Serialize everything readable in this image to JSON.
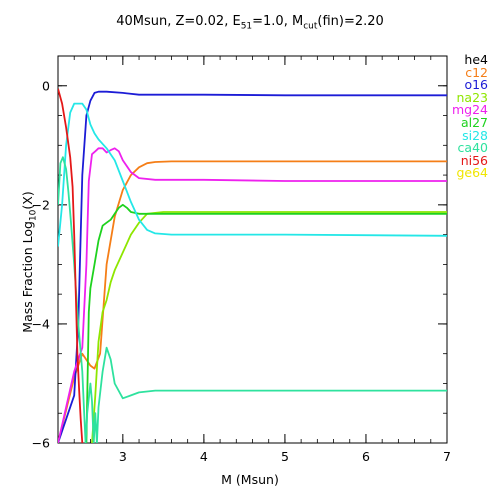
{
  "chart_data": {
    "type": "line",
    "title_parts": {
      "prefix": "40Msun, Z=0.02, E",
      "e_sub": "51",
      "mid": "=1.0, M",
      "m_sub": "cut",
      "suffix": "(fin)=2.20"
    },
    "xlabel": "M (Msun)",
    "ylabel_parts": {
      "prefix": "Mass Fraction Log",
      "sub": "10",
      "suffix": "(X)"
    },
    "xlim": [
      2.2,
      7
    ],
    "ylim": [
      -6,
      0.5
    ],
    "xticks": [
      3,
      4,
      5,
      6,
      7
    ],
    "yticks": [
      0,
      -2,
      -4,
      -6
    ],
    "grid": false,
    "legend_position": "right",
    "series": [
      {
        "name": "he4",
        "color": "#000000",
        "x": [],
        "y": []
      },
      {
        "name": "c12",
        "color": "#f57e17",
        "x": [
          2.2,
          2.4,
          2.5,
          2.6,
          2.65,
          2.72,
          2.8,
          2.9,
          3.0,
          3.1,
          3.2,
          3.3,
          3.4,
          3.6,
          4.0,
          5.0,
          7.0
        ],
        "y": [
          -6,
          -4.9,
          -4.5,
          -4.7,
          -4.75,
          -4.5,
          -3.0,
          -2.2,
          -1.75,
          -1.5,
          -1.37,
          -1.3,
          -1.28,
          -1.27,
          -1.27,
          -1.27,
          -1.27
        ]
      },
      {
        "name": "o16",
        "color": "#1c1cd6",
        "x": [
          2.2,
          2.4,
          2.45,
          2.5,
          2.55,
          2.6,
          2.65,
          2.7,
          2.8,
          3.0,
          3.2,
          3.5,
          4.0,
          5.0,
          7.0
        ],
        "y": [
          -6,
          -5.2,
          -4.0,
          -1.5,
          -0.5,
          -0.25,
          -0.12,
          -0.1,
          -0.1,
          -0.12,
          -0.15,
          -0.15,
          -0.15,
          -0.16,
          -0.16
        ]
      },
      {
        "name": "na23",
        "color": "#8ee600",
        "x": [
          2.62,
          2.66,
          2.7,
          2.75,
          2.8,
          2.85,
          2.9,
          3.0,
          3.1,
          3.2,
          3.3,
          3.5,
          4.0,
          5.0,
          7.0
        ],
        "y": [
          -6,
          -5.2,
          -4.3,
          -3.8,
          -3.6,
          -3.3,
          -3.1,
          -2.8,
          -2.5,
          -2.3,
          -2.15,
          -2.12,
          -2.12,
          -2.12,
          -2.12
        ]
      },
      {
        "name": "mg24",
        "color": "#ee21ee",
        "x": [
          2.2,
          2.25,
          2.3,
          2.4,
          2.5,
          2.55,
          2.58,
          2.62,
          2.66,
          2.7,
          2.75,
          2.8,
          2.85,
          2.9,
          2.95,
          3.0,
          3.1,
          3.2,
          3.4,
          3.6,
          4.0,
          5.0,
          7.0
        ],
        "y": [
          -6,
          -5.7,
          -5.4,
          -4.8,
          -4.4,
          -3.0,
          -1.6,
          -1.15,
          -1.1,
          -1.05,
          -1.05,
          -1.12,
          -1.08,
          -1.05,
          -1.1,
          -1.25,
          -1.45,
          -1.55,
          -1.58,
          -1.58,
          -1.58,
          -1.6,
          -1.6
        ]
      },
      {
        "name": "al27",
        "color": "#1ed21e",
        "x": [
          2.55,
          2.58,
          2.6,
          2.65,
          2.7,
          2.75,
          2.8,
          2.85,
          2.9,
          2.95,
          3.0,
          3.05,
          3.1,
          3.2,
          3.3,
          3.5,
          4.0,
          5.0,
          7.0
        ],
        "y": [
          -6,
          -3.8,
          -3.4,
          -3.0,
          -2.6,
          -2.35,
          -2.3,
          -2.25,
          -2.15,
          -2.05,
          -2.0,
          -2.05,
          -2.12,
          -2.15,
          -2.15,
          -2.15,
          -2.15,
          -2.15,
          -2.15
        ]
      },
      {
        "name": "si28",
        "color": "#24e7e7",
        "x": [
          2.2,
          2.25,
          2.3,
          2.35,
          2.4,
          2.45,
          2.5,
          2.55,
          2.6,
          2.65,
          2.7,
          2.8,
          2.9,
          3.0,
          3.1,
          3.2,
          3.3,
          3.4,
          3.6,
          4.0,
          5.0,
          7.0
        ],
        "y": [
          -2.7,
          -2.0,
          -1.0,
          -0.45,
          -0.3,
          -0.3,
          -0.3,
          -0.4,
          -0.65,
          -0.8,
          -0.9,
          -1.05,
          -1.25,
          -1.6,
          -1.95,
          -2.25,
          -2.42,
          -2.48,
          -2.5,
          -2.5,
          -2.5,
          -2.52
        ]
      },
      {
        "name": "ca40",
        "color": "#2ee29e",
        "x": [
          2.2,
          2.23,
          2.26,
          2.3,
          2.33,
          2.36,
          2.4,
          2.45,
          2.5,
          2.52,
          2.54,
          2.56,
          2.6,
          2.62,
          2.64,
          2.66,
          2.68,
          2.7,
          2.75,
          2.8,
          2.85,
          2.9,
          3.0,
          3.1,
          3.2,
          3.4,
          4.0,
          5.0,
          7.0
        ],
        "y": [
          -2.0,
          -1.3,
          -1.2,
          -1.4,
          -1.8,
          -2.3,
          -3.0,
          -4.0,
          -4.8,
          -5.4,
          -6.0,
          -5.5,
          -5.0,
          -5.3,
          -6.0,
          -5.5,
          -6.0,
          -5.4,
          -4.8,
          -4.4,
          -4.6,
          -5.0,
          -5.25,
          -5.2,
          -5.15,
          -5.12,
          -5.12,
          -5.12,
          -5.12
        ]
      },
      {
        "name": "ni56",
        "color": "#e41818",
        "x": [
          2.2,
          2.25,
          2.3,
          2.35,
          2.38,
          2.4,
          2.42,
          2.44,
          2.46,
          2.48,
          2.5
        ],
        "y": [
          -0.05,
          -0.3,
          -0.7,
          -1.2,
          -1.7,
          -2.5,
          -3.5,
          -4.5,
          -5.1,
          -5.6,
          -6.0
        ]
      },
      {
        "name": "ge64",
        "color": "#f0e600",
        "x": [],
        "y": []
      }
    ]
  }
}
